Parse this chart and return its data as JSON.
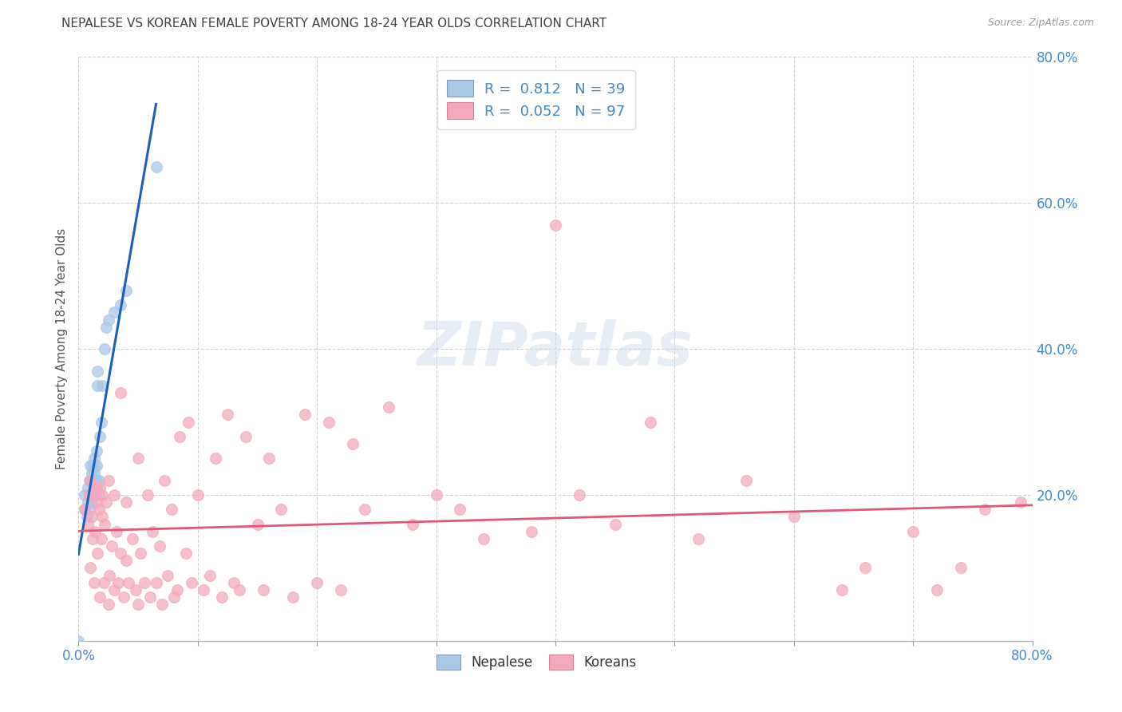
{
  "title": "NEPALESE VS KOREAN FEMALE POVERTY AMONG 18-24 YEAR OLDS CORRELATION CHART",
  "source": "Source: ZipAtlas.com",
  "ylabel": "Female Poverty Among 18-24 Year Olds",
  "nepalese_R": 0.812,
  "nepalese_N": 39,
  "korean_R": 0.052,
  "korean_N": 97,
  "nepalese_color": "#a8c8e8",
  "korean_color": "#f5a8bc",
  "nepalese_line_color": "#1a5fbf",
  "korean_line_color": "#e05878",
  "bg_color": "#ffffff",
  "grid_color": "#cccccc",
  "title_color": "#404040",
  "axis_color": "#4488cc",
  "xlim": [
    0.0,
    0.8
  ],
  "ylim": [
    0.0,
    0.8
  ],
  "nepalese_x": [
    0.0,
    0.005,
    0.005,
    0.007,
    0.008,
    0.008,
    0.009,
    0.009,
    0.009,
    0.01,
    0.01,
    0.01,
    0.011,
    0.011,
    0.012,
    0.012,
    0.012,
    0.013,
    0.013,
    0.013,
    0.014,
    0.014,
    0.015,
    0.015,
    0.015,
    0.016,
    0.016,
    0.017,
    0.017,
    0.018,
    0.019,
    0.02,
    0.022,
    0.023,
    0.025,
    0.03,
    0.035,
    0.04,
    0.065
  ],
  "nepalese_y": [
    0.0,
    0.18,
    0.2,
    0.17,
    0.19,
    0.21,
    0.18,
    0.2,
    0.22,
    0.2,
    0.22,
    0.24,
    0.19,
    0.23,
    0.2,
    0.22,
    0.24,
    0.21,
    0.23,
    0.25,
    0.22,
    0.24,
    0.22,
    0.24,
    0.26,
    0.35,
    0.37,
    0.2,
    0.22,
    0.28,
    0.3,
    0.35,
    0.4,
    0.43,
    0.44,
    0.45,
    0.46,
    0.48,
    0.65
  ],
  "korean_x": [
    0.005,
    0.008,
    0.009,
    0.01,
    0.01,
    0.011,
    0.012,
    0.013,
    0.013,
    0.014,
    0.015,
    0.015,
    0.016,
    0.017,
    0.018,
    0.018,
    0.019,
    0.02,
    0.02,
    0.021,
    0.022,
    0.023,
    0.025,
    0.025,
    0.026,
    0.028,
    0.03,
    0.03,
    0.032,
    0.033,
    0.035,
    0.035,
    0.038,
    0.04,
    0.04,
    0.042,
    0.045,
    0.048,
    0.05,
    0.05,
    0.052,
    0.055,
    0.058,
    0.06,
    0.062,
    0.065,
    0.068,
    0.07,
    0.072,
    0.075,
    0.078,
    0.08,
    0.083,
    0.085,
    0.09,
    0.092,
    0.095,
    0.1,
    0.105,
    0.11,
    0.115,
    0.12,
    0.125,
    0.13,
    0.135,
    0.14,
    0.15,
    0.155,
    0.16,
    0.17,
    0.18,
    0.19,
    0.2,
    0.21,
    0.22,
    0.23,
    0.24,
    0.26,
    0.28,
    0.3,
    0.32,
    0.34,
    0.38,
    0.4,
    0.42,
    0.45,
    0.48,
    0.52,
    0.56,
    0.6,
    0.64,
    0.66,
    0.7,
    0.72,
    0.74,
    0.76,
    0.79
  ],
  "korean_y": [
    0.18,
    0.16,
    0.2,
    0.1,
    0.22,
    0.17,
    0.14,
    0.2,
    0.08,
    0.15,
    0.19,
    0.21,
    0.12,
    0.18,
    0.06,
    0.21,
    0.14,
    0.17,
    0.2,
    0.08,
    0.16,
    0.19,
    0.05,
    0.22,
    0.09,
    0.13,
    0.07,
    0.2,
    0.15,
    0.08,
    0.12,
    0.34,
    0.06,
    0.11,
    0.19,
    0.08,
    0.14,
    0.07,
    0.05,
    0.25,
    0.12,
    0.08,
    0.2,
    0.06,
    0.15,
    0.08,
    0.13,
    0.05,
    0.22,
    0.09,
    0.18,
    0.06,
    0.07,
    0.28,
    0.12,
    0.3,
    0.08,
    0.2,
    0.07,
    0.09,
    0.25,
    0.06,
    0.31,
    0.08,
    0.07,
    0.28,
    0.16,
    0.07,
    0.25,
    0.18,
    0.06,
    0.31,
    0.08,
    0.3,
    0.07,
    0.27,
    0.18,
    0.32,
    0.16,
    0.2,
    0.18,
    0.14,
    0.15,
    0.57,
    0.2,
    0.16,
    0.3,
    0.14,
    0.22,
    0.17,
    0.07,
    0.1,
    0.15,
    0.07,
    0.1,
    0.18,
    0.19
  ]
}
